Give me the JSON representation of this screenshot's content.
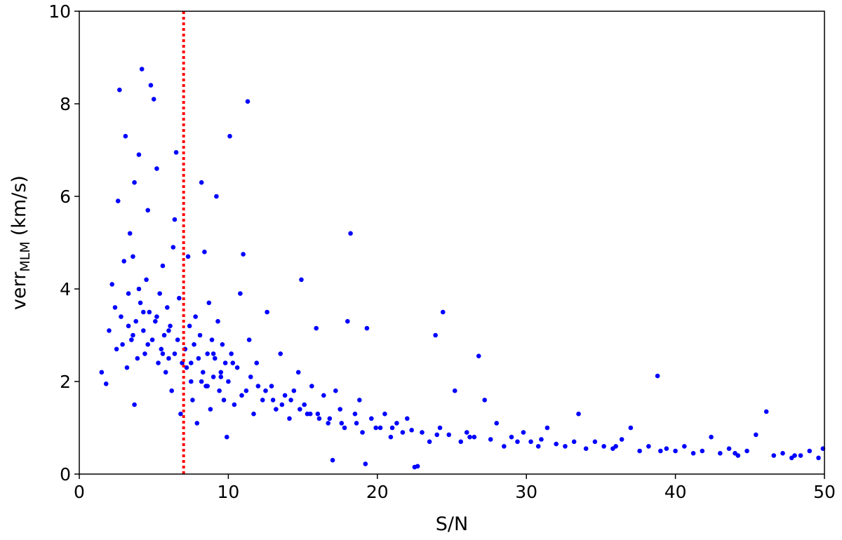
{
  "chart_data": {
    "type": "scatter",
    "xlabel": "S/N",
    "ylabel": {
      "text": "verr",
      "subscript": "MLM",
      "unit": "(km/s)"
    },
    "xlim": [
      0,
      50
    ],
    "ylim": [
      0,
      10
    ],
    "xticks": [
      0,
      10,
      20,
      30,
      40,
      50
    ],
    "yticks": [
      0,
      2,
      4,
      6,
      8,
      10
    ],
    "grid": false,
    "color": "#0000ff",
    "vline": {
      "x": 7,
      "color": "#ff0000",
      "style": "dotted"
    },
    "x": [
      1.5,
      1.8,
      2.0,
      2.2,
      2.4,
      2.5,
      2.6,
      2.7,
      2.8,
      3.0,
      3.1,
      3.2,
      3.3,
      3.4,
      3.5,
      3.6,
      3.7,
      3.8,
      3.9,
      4.0,
      4.1,
      4.2,
      4.3,
      4.4,
      4.5,
      4.6,
      4.7,
      4.8,
      4.9,
      5.0,
      5.1,
      5.2,
      5.3,
      5.4,
      5.5,
      5.6,
      5.7,
      5.8,
      5.9,
      6.0,
      6.1,
      6.2,
      6.3,
      6.4,
      6.5,
      6.6,
      6.7,
      6.8,
      6.9,
      2.9,
      3.3,
      3.6,
      4.0,
      4.3,
      4.6,
      5.2,
      5.6,
      6.0,
      6.4,
      3.7,
      7.1,
      7.2,
      7.3,
      7.4,
      7.5,
      7.6,
      7.7,
      7.8,
      7.9,
      8.0,
      8.1,
      8.2,
      8.3,
      8.4,
      8.5,
      8.6,
      8.7,
      8.8,
      8.9,
      9.0,
      9.1,
      9.2,
      9.3,
      9.4,
      9.5,
      9.6,
      9.7,
      9.8,
      9.9,
      10.0,
      10.1,
      10.2,
      10.4,
      10.6,
      10.8,
      11.0,
      11.2,
      11.3,
      11.5,
      11.7,
      11.9,
      12.0,
      8.6,
      9.5,
      10.3,
      10.9,
      7.5,
      8.2,
      9.0,
      11.4,
      12.3,
      12.6,
      12.9,
      13.2,
      13.5,
      13.8,
      14.1,
      14.4,
      14.7,
      14.9,
      15.1,
      15.3,
      15.6,
      15.9,
      16.1,
      16.4,
      16.7,
      17.0,
      17.2,
      17.5,
      17.8,
      18.0,
      18.2,
      18.5,
      18.8,
      19.0,
      19.2,
      19.3,
      19.6,
      19.9,
      12.5,
      13.0,
      13.6,
      14.2,
      14.8,
      15.5,
      16.0,
      16.8,
      17.6,
      18.6,
      20.2,
      20.5,
      20.9,
      21.3,
      21.7,
      22.0,
      22.5,
      22.7,
      23.0,
      23.5,
      23.9,
      24.2,
      24.4,
      24.8,
      25.2,
      25.6,
      26.0,
      26.5,
      26.8,
      27.2,
      27.6,
      28.0,
      28.5,
      29.0,
      29.4,
      29.8,
      21.0,
      22.3,
      24.0,
      26.2,
      30.3,
      30.8,
      31.4,
      32.0,
      32.6,
      33.2,
      33.5,
      34.0,
      34.6,
      35.2,
      35.8,
      36.4,
      37.0,
      37.6,
      38.2,
      38.8,
      39.4,
      40.0,
      40.6,
      41.2,
      41.8,
      42.4,
      43.0,
      43.6,
      44.2,
      44.8,
      45.4,
      46.1,
      46.6,
      47.2,
      47.8,
      48.4,
      49.0,
      49.6,
      49.9,
      31.0,
      36.0,
      44.0,
      48.0,
      39.0
    ],
    "values": [
      2.2,
      1.95,
      3.1,
      4.1,
      3.6,
      2.7,
      5.9,
      8.3,
      3.4,
      4.6,
      7.3,
      2.3,
      3.9,
      5.2,
      2.9,
      4.7,
      6.3,
      3.3,
      2.5,
      6.9,
      3.7,
      8.75,
      3.1,
      2.6,
      4.2,
      5.7,
      3.5,
      8.4,
      2.9,
      8.1,
      3.3,
      6.6,
      2.4,
      3.9,
      2.7,
      4.5,
      3.0,
      2.2,
      3.6,
      2.5,
      3.2,
      1.8,
      4.9,
      2.6,
      6.95,
      2.9,
      3.8,
      1.3,
      2.4,
      2.8,
      3.2,
      3.0,
      4.0,
      3.5,
      2.8,
      3.4,
      2.6,
      3.1,
      5.5,
      1.5,
      2.7,
      2.3,
      4.7,
      3.2,
      2.0,
      1.6,
      2.8,
      3.4,
      1.1,
      2.5,
      3.0,
      6.3,
      2.2,
      4.8,
      1.9,
      2.6,
      3.7,
      1.4,
      2.9,
      2.1,
      2.5,
      6.0,
      3.3,
      1.8,
      2.2,
      2.8,
      1.6,
      2.4,
      0.8,
      2.0,
      7.3,
      2.6,
      1.5,
      2.3,
      3.9,
      4.75,
      1.8,
      8.05,
      2.1,
      1.3,
      2.4,
      1.9,
      1.9,
      2.1,
      2.4,
      1.7,
      2.4,
      2.0,
      2.6,
      2.9,
      1.6,
      3.5,
      1.9,
      1.4,
      2.6,
      1.7,
      1.2,
      1.8,
      2.2,
      4.2,
      1.5,
      1.3,
      1.9,
      3.15,
      1.2,
      1.7,
      1.1,
      0.3,
      1.8,
      1.4,
      1.0,
      3.3,
      5.2,
      1.3,
      1.6,
      0.9,
      0.22,
      3.15,
      1.2,
      1.0,
      1.8,
      1.6,
      1.5,
      1.6,
      1.4,
      1.3,
      1.3,
      1.2,
      1.1,
      1.1,
      1.0,
      1.3,
      0.8,
      1.1,
      0.9,
      1.2,
      0.15,
      0.17,
      0.9,
      0.7,
      3.0,
      1.0,
      3.5,
      0.85,
      1.8,
      0.7,
      0.9,
      0.8,
      2.55,
      1.6,
      0.75,
      1.1,
      0.6,
      0.8,
      0.7,
      0.9,
      1.0,
      0.95,
      0.85,
      0.8,
      0.7,
      0.6,
      1.0,
      0.65,
      0.6,
      0.7,
      1.3,
      0.55,
      0.7,
      0.6,
      0.55,
      0.75,
      1.0,
      0.5,
      0.6,
      2.12,
      0.55,
      0.5,
      0.6,
      0.45,
      0.5,
      0.8,
      0.45,
      0.55,
      0.4,
      0.5,
      0.85,
      1.35,
      0.4,
      0.45,
      0.35,
      0.4,
      0.5,
      0.35,
      0.55,
      0.75,
      0.6,
      0.45,
      0.4,
      0.5
    ]
  }
}
